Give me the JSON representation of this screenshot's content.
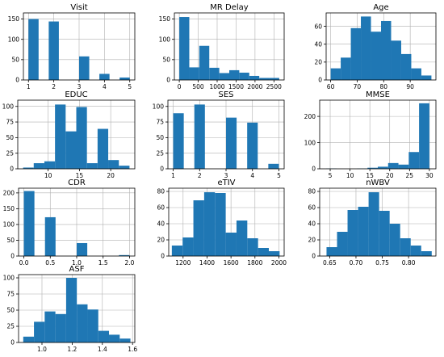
{
  "chart_data": [
    {
      "type": "bar",
      "title": "Visit",
      "bar_color": "#1f77b4",
      "grid": true,
      "xlim": [
        0.8,
        5.2
      ],
      "ylim": [
        0,
        165
      ],
      "xticks": [
        1,
        2,
        3,
        4,
        5
      ],
      "yticks": [
        0,
        50,
        100,
        150
      ],
      "bins": [
        [
          1,
          1.4,
          150
        ],
        [
          1.4,
          1.8,
          0
        ],
        [
          1.8,
          2.2,
          144
        ],
        [
          2.2,
          2.6,
          0
        ],
        [
          2.6,
          3.0,
          0
        ],
        [
          3.0,
          3.4,
          58
        ],
        [
          3.4,
          3.8,
          0
        ],
        [
          3.8,
          4.2,
          15
        ],
        [
          4.2,
          4.6,
          0
        ],
        [
          4.6,
          5.0,
          6
        ]
      ]
    },
    {
      "type": "bar",
      "title": "MR Delay",
      "bar_color": "#1f77b4",
      "grid": true,
      "xlim": [
        -130,
        2770
      ],
      "ylim": [
        0,
        165
      ],
      "xticks": [
        0,
        500,
        1000,
        1500,
        2000,
        2500
      ],
      "yticks": [
        0,
        50,
        100,
        150
      ],
      "bins": [
        [
          0,
          264,
          155
        ],
        [
          264,
          528,
          31
        ],
        [
          528,
          792,
          84
        ],
        [
          792,
          1056,
          30
        ],
        [
          1056,
          1320,
          17
        ],
        [
          1320,
          1584,
          24
        ],
        [
          1584,
          1848,
          18
        ],
        [
          1848,
          2112,
          10
        ],
        [
          2112,
          2376,
          5
        ],
        [
          2376,
          2640,
          5
        ]
      ]
    },
    {
      "type": "bar",
      "title": "Age",
      "bar_color": "#1f77b4",
      "grid": true,
      "xlim": [
        58.3,
        99.7
      ],
      "ylim": [
        0,
        75
      ],
      "xticks": [
        60,
        70,
        80,
        90
      ],
      "yticks": [
        0,
        20,
        40,
        60
      ],
      "bins": [
        [
          60,
          63.8,
          13
        ],
        [
          63.8,
          67.6,
          25
        ],
        [
          67.6,
          71.4,
          58
        ],
        [
          71.4,
          75.2,
          71
        ],
        [
          75.2,
          79,
          54
        ],
        [
          79,
          82.8,
          66
        ],
        [
          82.8,
          86.6,
          44
        ],
        [
          86.6,
          90.4,
          29
        ],
        [
          90.4,
          94.2,
          13
        ],
        [
          94.2,
          98,
          5
        ]
      ]
    },
    {
      "type": "bar",
      "title": "EDUC",
      "bar_color": "#1f77b4",
      "grid": true,
      "xlim": [
        5.15,
        23.85
      ],
      "ylim": [
        0,
        110
      ],
      "xticks": [
        10,
        15,
        20
      ],
      "yticks": [
        0,
        25,
        50,
        75,
        100
      ],
      "bins": [
        [
          6,
          7.7,
          2
        ],
        [
          7.7,
          9.4,
          9
        ],
        [
          9.4,
          11.1,
          12
        ],
        [
          11.1,
          12.8,
          103
        ],
        [
          12.8,
          14.5,
          60
        ],
        [
          14.5,
          16.2,
          99
        ],
        [
          16.2,
          17.9,
          9
        ],
        [
          17.9,
          19.6,
          64
        ],
        [
          19.6,
          21.3,
          14
        ],
        [
          21.3,
          23,
          5
        ]
      ]
    },
    {
      "type": "bar",
      "title": "SES",
      "bar_color": "#1f77b4",
      "grid": true,
      "xlim": [
        0.8,
        5.2
      ],
      "ylim": [
        0,
        110
      ],
      "xticks": [
        1,
        2,
        3,
        4,
        5
      ],
      "yticks": [
        0,
        25,
        50,
        75,
        100
      ],
      "bins": [
        [
          1,
          1.4,
          89
        ],
        [
          1.4,
          1.8,
          0
        ],
        [
          1.8,
          2.2,
          103
        ],
        [
          2.2,
          2.6,
          0
        ],
        [
          2.6,
          3.0,
          0
        ],
        [
          3.0,
          3.4,
          82
        ],
        [
          3.4,
          3.8,
          0
        ],
        [
          3.8,
          4.2,
          74
        ],
        [
          4.2,
          4.6,
          0
        ],
        [
          4.6,
          5.0,
          8
        ]
      ]
    },
    {
      "type": "bar",
      "title": "MMSE",
      "bar_color": "#1f77b4",
      "grid": true,
      "xlim": [
        2.35,
        31.65
      ],
      "ylim": [
        0,
        262
      ],
      "xticks": [
        5,
        10,
        15,
        20,
        25,
        30
      ],
      "yticks": [
        0,
        100,
        200
      ],
      "bins": [
        [
          4,
          6.6,
          1
        ],
        [
          6.6,
          9.2,
          0
        ],
        [
          9.2,
          11.8,
          0
        ],
        [
          11.8,
          14.4,
          1
        ],
        [
          14.4,
          17,
          4
        ],
        [
          17,
          19.6,
          8
        ],
        [
          19.6,
          22.2,
          22
        ],
        [
          22.2,
          24.8,
          16
        ],
        [
          24.8,
          27.4,
          64
        ],
        [
          27.4,
          30,
          250
        ]
      ]
    },
    {
      "type": "bar",
      "title": "CDR",
      "bar_color": "#1f77b4",
      "grid": true,
      "xlim": [
        -0.1,
        2.1
      ],
      "ylim": [
        0,
        215
      ],
      "xticks": [
        0.0,
        0.5,
        1.0,
        1.5,
        2.0
      ],
      "xtick_labels": [
        "0.0",
        "0.5",
        "1.0",
        "1.5",
        "2.0"
      ],
      "yticks": [
        0,
        50,
        100,
        150,
        200
      ],
      "bins": [
        [
          0,
          0.2,
          206
        ],
        [
          0.2,
          0.4,
          0
        ],
        [
          0.4,
          0.6,
          123
        ],
        [
          0.6,
          0.8,
          0
        ],
        [
          0.8,
          1.0,
          0
        ],
        [
          1.0,
          1.2,
          41
        ],
        [
          1.2,
          1.4,
          0
        ],
        [
          1.4,
          1.6,
          0
        ],
        [
          1.6,
          1.8,
          0
        ],
        [
          1.8,
          2.0,
          3
        ]
      ]
    },
    {
      "type": "bar",
      "title": "eTIV",
      "bar_color": "#1f77b4",
      "grid": true,
      "xlim": [
        1080,
        2044
      ],
      "ylim": [
        0,
        84
      ],
      "xticks": [
        1200,
        1400,
        1600,
        1800,
        2000
      ],
      "yticks": [
        0,
        20,
        40,
        60,
        80
      ],
      "bins": [
        [
          1106,
          1196,
          13
        ],
        [
          1196,
          1286,
          23
        ],
        [
          1286,
          1376,
          69
        ],
        [
          1376,
          1466,
          79
        ],
        [
          1466,
          1556,
          78
        ],
        [
          1556,
          1646,
          29
        ],
        [
          1646,
          1736,
          44
        ],
        [
          1736,
          1826,
          22
        ],
        [
          1826,
          1916,
          10
        ],
        [
          1916,
          2006,
          6
        ]
      ]
    },
    {
      "type": "bar",
      "title": "nWBV",
      "bar_color": "#1f77b4",
      "grid": true,
      "xlim": [
        0.631,
        0.852
      ],
      "ylim": [
        0,
        84
      ],
      "xticks": [
        0.65,
        0.7,
        0.75,
        0.8
      ],
      "xtick_labels": [
        "0.65",
        "0.70",
        "0.75",
        "0.80"
      ],
      "yticks": [
        0,
        20,
        40,
        60,
        80
      ],
      "bins": [
        [
          0.644,
          0.664,
          11
        ],
        [
          0.664,
          0.684,
          30
        ],
        [
          0.684,
          0.704,
          57
        ],
        [
          0.704,
          0.724,
          61
        ],
        [
          0.724,
          0.744,
          79
        ],
        [
          0.744,
          0.764,
          56
        ],
        [
          0.764,
          0.784,
          40
        ],
        [
          0.784,
          0.804,
          22
        ],
        [
          0.804,
          0.824,
          13
        ],
        [
          0.824,
          0.844,
          6
        ]
      ]
    },
    {
      "type": "bar",
      "title": "ASF",
      "bar_color": "#1f77b4",
      "grid": true,
      "xlim": [
        0.845,
        1.615
      ],
      "ylim": [
        0,
        105
      ],
      "xticks": [
        1.0,
        1.2,
        1.4,
        1.6
      ],
      "xtick_labels": [
        "1.0",
        "1.2",
        "1.4",
        "1.6"
      ],
      "yticks": [
        0,
        25,
        50,
        75,
        100
      ],
      "bins": [
        [
          0.876,
          0.947,
          9
        ],
        [
          0.947,
          1.018,
          32
        ],
        [
          1.018,
          1.089,
          48
        ],
        [
          1.089,
          1.16,
          44
        ],
        [
          1.16,
          1.231,
          100
        ],
        [
          1.231,
          1.302,
          59
        ],
        [
          1.302,
          1.373,
          51
        ],
        [
          1.373,
          1.444,
          18
        ],
        [
          1.444,
          1.515,
          12
        ],
        [
          1.515,
          1.586,
          6
        ]
      ]
    }
  ]
}
